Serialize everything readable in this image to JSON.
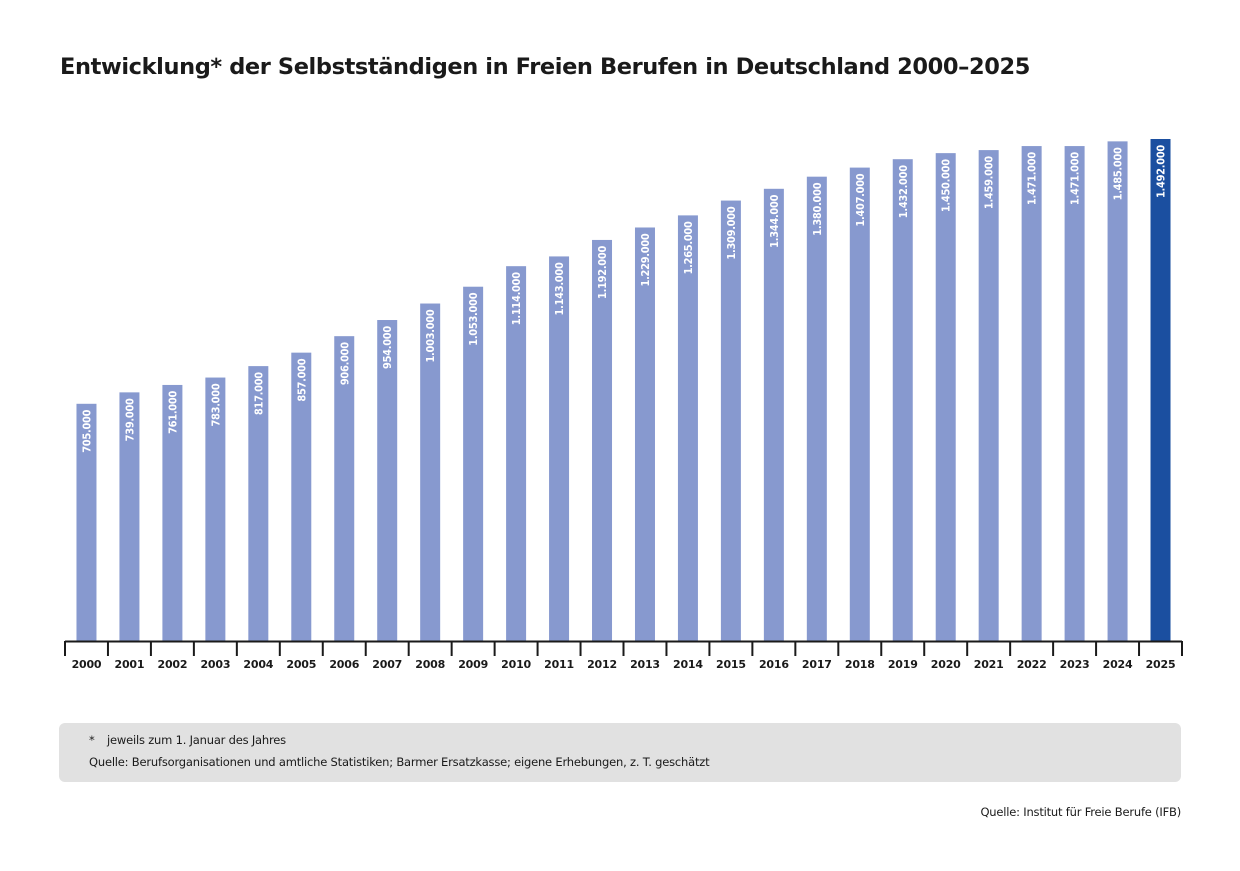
{
  "title": "Entwicklung* der Selbstständigen in Freien Berufen in Deutschland 2000–2025",
  "chart_data": {
    "type": "bar",
    "title": "Entwicklung* der Selbstständigen in Freien Berufen in Deutschland 2000–2025",
    "xlabel": "",
    "ylabel": "",
    "ylim": [
      0,
      1492000
    ],
    "grid": false,
    "legend": "none",
    "categories": [
      "2000",
      "2001",
      "2002",
      "2003",
      "2004",
      "2005",
      "2006",
      "2007",
      "2008",
      "2009",
      "2010",
      "2011",
      "2012",
      "2013",
      "2014",
      "2015",
      "2016",
      "2017",
      "2018",
      "2019",
      "2020",
      "2021",
      "2022",
      "2023",
      "2024",
      "2025"
    ],
    "values": [
      705000,
      739000,
      761000,
      783000,
      817000,
      857000,
      906000,
      954000,
      1003000,
      1053000,
      1114000,
      1143000,
      1192000,
      1229000,
      1265000,
      1309000,
      1344000,
      1380000,
      1407000,
      1432000,
      1450000,
      1459000,
      1471000,
      1471000,
      1485000,
      1492000
    ],
    "data_labels": [
      "705.000",
      "739.000",
      "761.000",
      "783.000",
      "817.000",
      "857.000",
      "906.000",
      "954.000",
      "1.003.000",
      "1.053.000",
      "1.114.000",
      "1.143.000",
      "1.192.000",
      "1.229.000",
      "1.265.000",
      "1.309.000",
      "1.344.000",
      "1.380.000",
      "1.407.000",
      "1.432.000",
      "1.450.000",
      "1.459.000",
      "1.471.000",
      "1.471.000",
      "1.485.000",
      "1.492.000"
    ],
    "highlight_index": 25,
    "colors": {
      "bar": "#8799cf",
      "highlight": "#1b4fa0",
      "axis": "#1a1a1a",
      "label": "#ffffff"
    }
  },
  "footnote": {
    "marker": "*",
    "text": "jeweils zum 1. Januar des Jahres",
    "sources": "Quelle: Berufsorganisationen und amtliche Statistiken; Barmer Ersatzkasse; eigene Erhebungen, z. T. geschätzt"
  },
  "source": "Quelle: Institut für Freie Berufe (IFB)"
}
